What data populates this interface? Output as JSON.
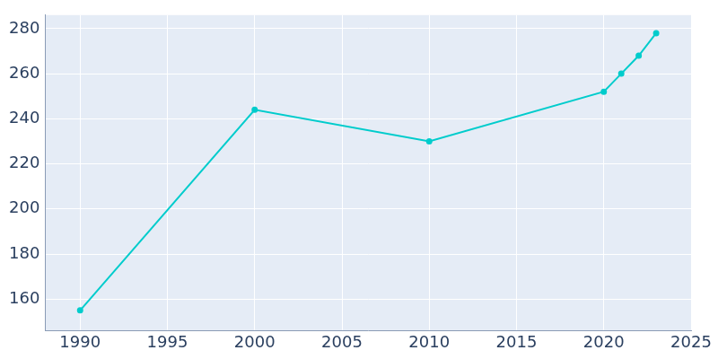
{
  "chart_data": {
    "type": "line",
    "x": [
      1990,
      2000,
      2010,
      2020,
      2021,
      2022,
      2023
    ],
    "values": [
      155,
      244,
      230,
      252,
      260,
      268,
      278
    ],
    "color": "#00cccc",
    "marker": "circle",
    "xlim": [
      1988,
      2025
    ],
    "xticks": [
      1990,
      1995,
      2000,
      2005,
      2010,
      2015,
      2020,
      2025
    ],
    "ylim": [
      146,
      286
    ],
    "yticks": [
      160,
      180,
      200,
      220,
      240,
      260,
      280
    ],
    "grid": true
  }
}
